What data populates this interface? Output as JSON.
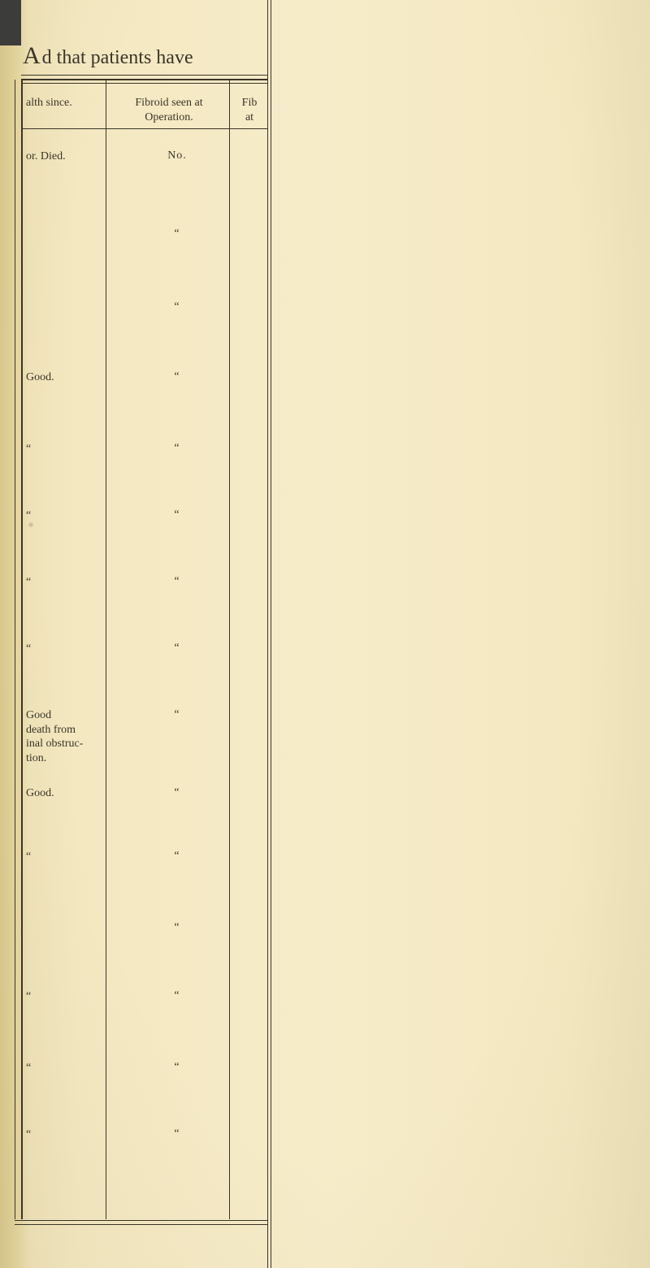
{
  "heading_prefix": "A",
  "heading": "d that patients have ",
  "columns": {
    "health_since": "alth since.",
    "fibroid_seen": "Fibroid seen at\nOperation.",
    "fib_at": "Fib\nat"
  },
  "rows": [
    {
      "a": "or.  Died.",
      "b": "No."
    },
    {
      "a": "",
      "b": "“"
    },
    {
      "a": "",
      "b": "“"
    },
    {
      "a": "Good.",
      "b": "“"
    },
    {
      "a": "“",
      "b": "“"
    },
    {
      "a": "“",
      "b": "“",
      "smudge": true
    },
    {
      "a": "“",
      "b": "“"
    },
    {
      "a": "“",
      "b": "“"
    },
    {
      "a": "Good\ndeath from\ninal obstruc-\ntion.",
      "b": "“"
    },
    {
      "a": "Good.",
      "b": "“"
    },
    {
      "a": "“",
      "b": "“"
    },
    {
      "a": "",
      "b": "“"
    },
    {
      "a": "“",
      "b": "“"
    },
    {
      "a": "“",
      "b": "“"
    },
    {
      "a": "“",
      "b": "“"
    }
  ],
  "colors": {
    "paper": "#f4e8c1",
    "ink": "#3a3428",
    "spine": "#d9c98e"
  }
}
